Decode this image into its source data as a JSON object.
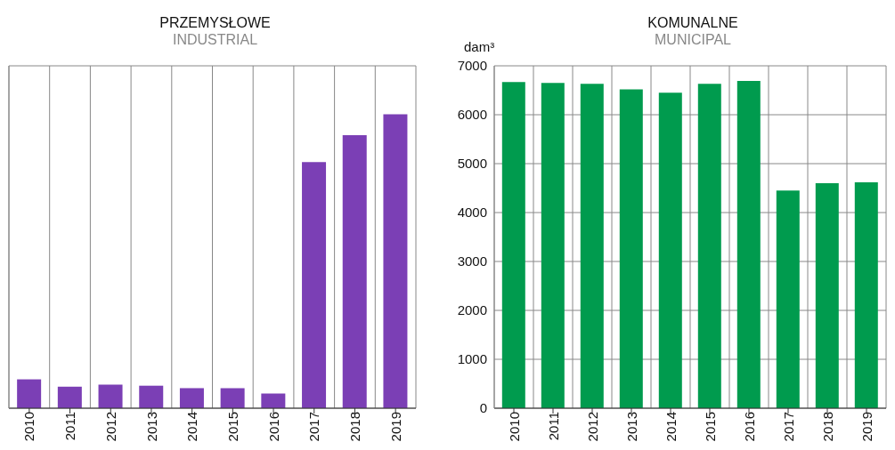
{
  "chart_data": [
    {
      "type": "bar",
      "title": "PRZEMYSŁOWE",
      "subtitle": "INDUSTRIAL",
      "categories": [
        "2010",
        "2011",
        "2012",
        "2013",
        "2014",
        "2015",
        "2016",
        "2017",
        "2018",
        "2019"
      ],
      "values": [
        590,
        440,
        480,
        460,
        410,
        410,
        300,
        5030,
        5580,
        6010
      ],
      "color": "#7b3fb5",
      "ylim": [
        0,
        7000
      ],
      "yticks": [
        0,
        1000,
        2000,
        3000,
        4000,
        5000,
        6000,
        7000
      ],
      "grid": true,
      "tick_labels": "x"
    },
    {
      "type": "bar",
      "title": "KOMUNALNE",
      "subtitle": "MUNICIPAL",
      "ylabel": "dam³",
      "categories": [
        "2010",
        "2011",
        "2012",
        "2013",
        "2014",
        "2015",
        "2016",
        "2017",
        "2018",
        "2019"
      ],
      "values": [
        6670,
        6650,
        6630,
        6520,
        6450,
        6630,
        6690,
        4450,
        4600,
        4620
      ],
      "color": "#009b4e",
      "ylim": [
        0,
        7000
      ],
      "yticks": [
        0,
        1000,
        2000,
        3000,
        4000,
        5000,
        6000,
        7000
      ],
      "grid": true
    }
  ]
}
